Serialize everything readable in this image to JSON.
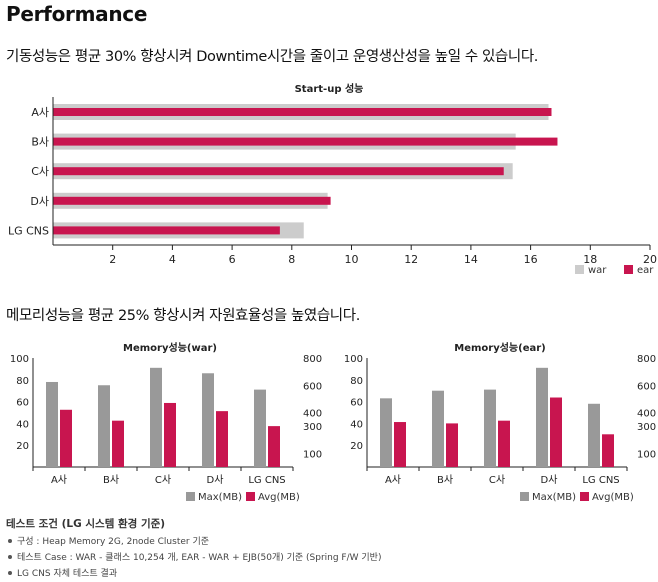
{
  "page": {
    "title": "Performance",
    "headline1": "기동성능은 평균 30% 향상시켜 Downtime시간을 줄이고 운영생산성을 높일 수 있습니다.",
    "headline2": "메모리성능을 평균 25% 향상시켜 자원효율성을 높였습니다."
  },
  "colors": {
    "war": "#cccccc",
    "ear": "#c8154f",
    "max": "#999999",
    "avg": "#c8154f"
  },
  "chart_data": [
    {
      "type": "bar",
      "orientation": "horizontal",
      "title": "Start-up 성능",
      "categories": [
        "A사",
        "B사",
        "C사",
        "D사",
        "LG CNS"
      ],
      "series": [
        {
          "name": "war",
          "values": [
            16.6,
            15.5,
            15.4,
            9.2,
            8.4
          ]
        },
        {
          "name": "ear",
          "values": [
            16.7,
            16.9,
            15.1,
            9.3,
            7.6
          ]
        }
      ],
      "xlim": [
        0,
        20
      ],
      "xticks": [
        "2",
        "4",
        "6",
        "8",
        "10",
        "12",
        "14",
        "16",
        "18",
        "20"
      ],
      "legend": "bottom-right",
      "grid": false
    },
    {
      "type": "bar",
      "title": "Memory성능(war)",
      "categories": [
        "A사",
        "B사",
        "C사",
        "D사",
        "LG CNS"
      ],
      "series": [
        {
          "name": "Max(MB)",
          "axis": "left",
          "values": [
            78,
            75,
            91,
            86,
            71
          ]
        },
        {
          "name": "Avg(MB)",
          "axis": "right",
          "values": [
            420,
            340,
            470,
            410,
            300
          ]
        }
      ],
      "ylim": [
        0,
        100
      ],
      "yticks": [
        "100",
        "80",
        "60",
        "40",
        "20"
      ],
      "y2lim": [
        0,
        800
      ],
      "y2ticks": [
        "800",
        "600",
        "400",
        "300",
        "100"
      ],
      "legend": "bottom-right"
    },
    {
      "type": "bar",
      "title": "Memory성능(ear)",
      "categories": [
        "A사",
        "B사",
        "C사",
        "D사",
        "LG CNS"
      ],
      "series": [
        {
          "name": "Max(MB)",
          "axis": "left",
          "values": [
            63,
            70,
            71,
            91,
            58
          ]
        },
        {
          "name": "Avg(MB)",
          "axis": "right",
          "values": [
            330,
            320,
            340,
            510,
            240
          ]
        }
      ],
      "ylim": [
        0,
        100
      ],
      "yticks": [
        "100",
        "80",
        "60",
        "40",
        "20"
      ],
      "y2lim": [
        0,
        800
      ],
      "y2ticks": [
        "800",
        "600",
        "400",
        "300",
        "100"
      ],
      "legend": "bottom-right"
    }
  ],
  "notes": {
    "title": "테스트 조건 (LG 시스템 환경 기준)",
    "items": [
      "구성 : Heap Memory 2G, 2node Cluster 기준",
      "테스트 Case : WAR - 클래스 10,254 개, EAR - WAR + EJB(50개) 기준  (Spring F/W 기반)",
      "LG CNS 자체 테스트 결과"
    ]
  }
}
